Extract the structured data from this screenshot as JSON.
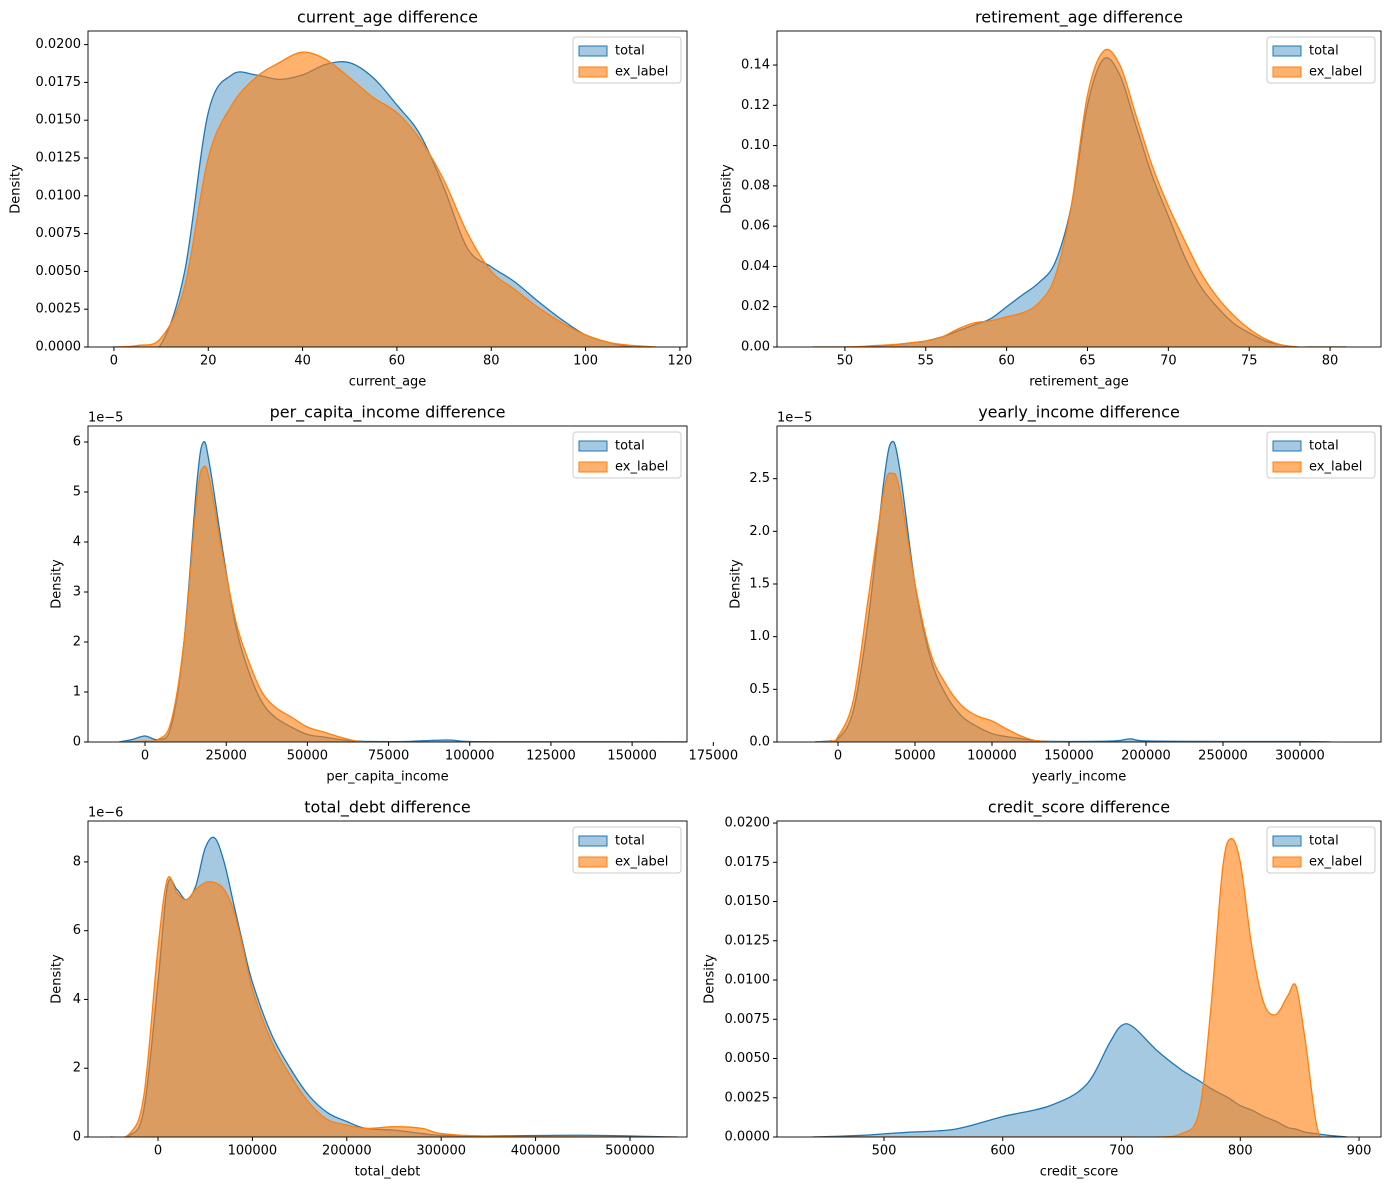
{
  "chart_data": [
    {
      "type": "area",
      "title": "current_age difference",
      "xlabel": "current_age",
      "ylabel": "Density",
      "x": [
        0,
        5,
        10,
        15,
        20,
        25,
        30,
        35,
        40,
        45,
        50,
        55,
        60,
        65,
        70,
        75,
        80,
        85,
        90,
        95,
        100,
        105,
        110,
        115
      ],
      "series": [
        {
          "name": "total",
          "color": "#1f77b4",
          "values": [
            0,
            0,
            0.0002,
            0.005,
            0.0155,
            0.018,
            0.018,
            0.0177,
            0.018,
            0.0187,
            0.0188,
            0.0178,
            0.016,
            0.014,
            0.0105,
            0.0065,
            0.0053,
            0.0043,
            0.003,
            0.0018,
            0.0008,
            0.0003,
            0,
            0
          ]
        },
        {
          "name": "ex_label",
          "color": "#ff7f0e",
          "values": [
            0,
            0.0001,
            0.0006,
            0.004,
            0.0125,
            0.016,
            0.0178,
            0.0188,
            0.0195,
            0.019,
            0.0178,
            0.0165,
            0.0155,
            0.0137,
            0.011,
            0.0075,
            0.005,
            0.0038,
            0.0026,
            0.0016,
            0.0008,
            0.0003,
            0.0001,
            0
          ]
        }
      ],
      "xlim": [
        -5.5,
        121.5
      ],
      "ylim": [
        0,
        0.0209
      ],
      "xticks": [
        0,
        20,
        40,
        60,
        80,
        100,
        120
      ],
      "yticks": [
        {
          "value": 0,
          "label": "0.0000"
        },
        {
          "value": 0.0025,
          "label": "0.0025"
        },
        {
          "value": 0.005,
          "label": "0.0050"
        },
        {
          "value": 0.0075,
          "label": "0.0075"
        },
        {
          "value": 0.01,
          "label": "0.0100"
        },
        {
          "value": 0.0125,
          "label": "0.0125"
        },
        {
          "value": 0.015,
          "label": "0.0150"
        },
        {
          "value": 0.0175,
          "label": "0.0175"
        },
        {
          "value": 0.02,
          "label": "0.0200"
        }
      ],
      "legend": "upper right"
    },
    {
      "type": "area",
      "title": "retirement_age difference",
      "xlabel": "retirement_age",
      "ylabel": "Density",
      "x": [
        48,
        49,
        50,
        51,
        52,
        53,
        54,
        55,
        56,
        57,
        58,
        59,
        60,
        61,
        62,
        63,
        64,
        65,
        66,
        67,
        68,
        69,
        70,
        71,
        72,
        73,
        74,
        75,
        76,
        77,
        78,
        79,
        80,
        81
      ],
      "series": [
        {
          "name": "total",
          "color": "#1f77b4",
          "values": [
            0,
            0,
            0,
            0,
            0.0005,
            0.001,
            0.002,
            0.003,
            0.005,
            0.008,
            0.011,
            0.014,
            0.02,
            0.026,
            0.032,
            0.042,
            0.07,
            0.12,
            0.143,
            0.135,
            0.11,
            0.085,
            0.065,
            0.045,
            0.03,
            0.02,
            0.012,
            0.007,
            0.003,
            0.001,
            0,
            0,
            0,
            0
          ]
        },
        {
          "name": "ex_label",
          "color": "#ff7f0e",
          "values": [
            0,
            0,
            0,
            0.0003,
            0.0008,
            0.0012,
            0.002,
            0.003,
            0.005,
            0.009,
            0.012,
            0.013,
            0.015,
            0.017,
            0.022,
            0.035,
            0.07,
            0.125,
            0.147,
            0.14,
            0.115,
            0.09,
            0.07,
            0.053,
            0.037,
            0.025,
            0.016,
            0.009,
            0.004,
            0.001,
            0,
            0,
            0,
            0
          ]
        }
      ],
      "xlim": [
        45.8,
        83.15
      ],
      "ylim": [
        0,
        0.1569
      ],
      "xticks": [
        50,
        55,
        60,
        65,
        70,
        75,
        80
      ],
      "yticks": [
        {
          "value": 0,
          "label": "0.00"
        },
        {
          "value": 0.02,
          "label": "0.02"
        },
        {
          "value": 0.04,
          "label": "0.04"
        },
        {
          "value": 0.06,
          "label": "0.06"
        },
        {
          "value": 0.08,
          "label": "0.08"
        },
        {
          "value": 0.1,
          "label": "0.10"
        },
        {
          "value": 0.12,
          "label": "0.12"
        },
        {
          "value": 0.14,
          "label": "0.14"
        }
      ],
      "legend": "upper right"
    },
    {
      "type": "area",
      "title": "per_capita_income difference",
      "xlabel": "per_capita_income",
      "ylabel": "Density",
      "y_offset_label": "1e−5",
      "x": [
        -8000,
        -4000,
        0,
        4000,
        8000,
        12000,
        16000,
        18000,
        20000,
        24000,
        28000,
        32000,
        36000,
        40000,
        45000,
        50000,
        55000,
        60000,
        65000,
        70000,
        80000,
        93000,
        100000,
        120000,
        150000,
        170000
      ],
      "series": [
        {
          "name": "total",
          "color": "#1f77b4",
          "values": [
            0,
            0.05,
            0.12,
            0.05,
            0.3,
            2.0,
            5.2,
            6.0,
            5.5,
            3.8,
            2.3,
            1.4,
            0.8,
            0.5,
            0.3,
            0.15,
            0.1,
            0.05,
            0.02,
            0.01,
            0.01,
            0.04,
            0.01,
            0.005,
            0.005,
            0
          ]
        },
        {
          "name": "ex_label",
          "color": "#ff7f0e",
          "values": [
            0,
            0.01,
            0.02,
            0.05,
            0.4,
            2.0,
            4.9,
            5.5,
            5.2,
            3.7,
            2.4,
            1.6,
            1.0,
            0.7,
            0.5,
            0.3,
            0.2,
            0.1,
            0.02,
            0,
            0,
            0,
            0,
            0,
            0,
            0
          ]
        }
      ],
      "xlim": [
        -17560,
        166900
      ],
      "ylim": [
        0,
        6.32
      ],
      "xticks": [
        0,
        25000,
        50000,
        75000,
        100000,
        125000,
        150000,
        175000
      ],
      "yticks": [
        0,
        1,
        2,
        3,
        4,
        5,
        6
      ],
      "legend": "upper right"
    },
    {
      "type": "area",
      "title": "yearly_income difference",
      "xlabel": "yearly_income",
      "ylabel": "Density",
      "y_offset_label": "1e−5",
      "x": [
        -15000,
        -5000,
        0,
        10000,
        20000,
        30000,
        35000,
        40000,
        50000,
        60000,
        70000,
        80000,
        90000,
        100000,
        110000,
        120000,
        130000,
        150000,
        180000,
        190000,
        200000,
        250000,
        300000,
        320000
      ],
      "series": [
        {
          "name": "total",
          "color": "#1f77b4",
          "values": [
            0,
            0.01,
            0.03,
            0.3,
            1.2,
            2.5,
            2.85,
            2.6,
            1.5,
            0.8,
            0.45,
            0.25,
            0.15,
            0.08,
            0.05,
            0.03,
            0.01,
            0.005,
            0.01,
            0.03,
            0.01,
            0.005,
            0.005,
            0
          ]
        },
        {
          "name": "ex_label",
          "color": "#ff7f0e",
          "values": [
            0,
            0.01,
            0.05,
            0.4,
            1.4,
            2.4,
            2.55,
            2.4,
            1.5,
            0.85,
            0.55,
            0.35,
            0.25,
            0.2,
            0.12,
            0.05,
            0.01,
            0,
            0,
            0,
            0,
            0,
            0,
            0
          ]
        }
      ],
      "xlim": [
        -39600,
        352600
      ],
      "ylim": [
        0,
        3.0
      ],
      "xticks": [
        0,
        50000,
        100000,
        150000,
        200000,
        250000,
        300000
      ],
      "yticks": [
        {
          "value": 0,
          "label": "0.0"
        },
        0.5,
        {
          "value": 1,
          "label": "1.0"
        },
        1.5,
        {
          "value": 2,
          "label": "2.0"
        },
        2.5
      ],
      "legend": "upper right"
    },
    {
      "type": "area",
      "title": "total_debt difference",
      "xlabel": "total_debt",
      "ylabel": "Density",
      "y_offset_label": "1e−6",
      "x": [
        -50000,
        -30000,
        -15000,
        0,
        10000,
        20000,
        30000,
        40000,
        50000,
        60000,
        70000,
        80000,
        90000,
        100000,
        120000,
        140000,
        160000,
        180000,
        200000,
        220000,
        250000,
        280000,
        300000,
        350000,
        450000,
        550000
      ],
      "series": [
        {
          "name": "total",
          "color": "#1f77b4",
          "values": [
            0,
            0.05,
            0.8,
            4.5,
            7.3,
            7.2,
            6.9,
            7.3,
            8.4,
            8.7,
            8.0,
            6.8,
            5.6,
            4.5,
            3.0,
            2.0,
            1.2,
            0.7,
            0.45,
            0.25,
            0.2,
            0.1,
            0.05,
            0.03,
            0.05,
            0
          ]
        },
        {
          "name": "ex_label",
          "color": "#ff7f0e",
          "values": [
            0,
            0.1,
            1.2,
            5.5,
            7.5,
            7.1,
            6.9,
            7.2,
            7.4,
            7.4,
            7.2,
            6.6,
            5.5,
            4.3,
            2.8,
            1.8,
            1.0,
            0.5,
            0.35,
            0.25,
            0.3,
            0.25,
            0.1,
            0.02,
            0,
            0
          ]
        }
      ],
      "xlim": [
        -74150,
        560400
      ],
      "ylim": [
        0,
        9.19
      ],
      "xticks": [
        0,
        100000,
        200000,
        300000,
        400000,
        500000
      ],
      "yticks": [
        0,
        2,
        4,
        6,
        8
      ],
      "legend": "upper right"
    },
    {
      "type": "area",
      "title": "credit_score difference",
      "xlabel": "credit_score",
      "ylabel": "Density",
      "x": [
        440,
        480,
        500,
        520,
        560,
        600,
        640,
        670,
        690,
        700,
        710,
        730,
        750,
        765,
        775,
        785,
        792,
        800,
        810,
        820,
        830,
        840,
        847,
        855,
        865,
        875,
        890
      ],
      "series": [
        {
          "name": "total",
          "color": "#1f77b4",
          "values": [
            0,
            0.0001,
            0.0002,
            0.0003,
            0.0005,
            0.0013,
            0.002,
            0.0033,
            0.006,
            0.0071,
            0.007,
            0.0055,
            0.0043,
            0.0036,
            0.0031,
            0.0027,
            0.0024,
            0.002,
            0.0017,
            0.0013,
            0.001,
            0.0006,
            0.0005,
            0.0003,
            0.0002,
            0.0001,
            0
          ]
        },
        {
          "name": "ex_label",
          "color": "#ff7f0e",
          "values": [
            0,
            0,
            0,
            0,
            0,
            0,
            0,
            0,
            0,
            0,
            0,
            0,
            0.0002,
            0.0015,
            0.008,
            0.017,
            0.019,
            0.0175,
            0.012,
            0.0085,
            0.0078,
            0.009,
            0.0096,
            0.006,
            0.0005,
            0,
            0
          ]
        }
      ],
      "xlim": [
        409.9,
        918.5
      ],
      "ylim": [
        0,
        0.02013
      ],
      "xticks": [
        500,
        600,
        700,
        800,
        900
      ],
      "yticks": [
        {
          "value": 0,
          "label": "0.0000"
        },
        {
          "value": 0.0025,
          "label": "0.0025"
        },
        {
          "value": 0.005,
          "label": "0.0050"
        },
        {
          "value": 0.0075,
          "label": "0.0075"
        },
        {
          "value": 0.01,
          "label": "0.0100"
        },
        {
          "value": 0.0125,
          "label": "0.0125"
        },
        {
          "value": 0.015,
          "label": "0.0150"
        },
        {
          "value": 0.0175,
          "label": "0.0175"
        },
        {
          "value": 0.02,
          "label": "0.0200"
        }
      ],
      "legend": "upper right"
    }
  ]
}
